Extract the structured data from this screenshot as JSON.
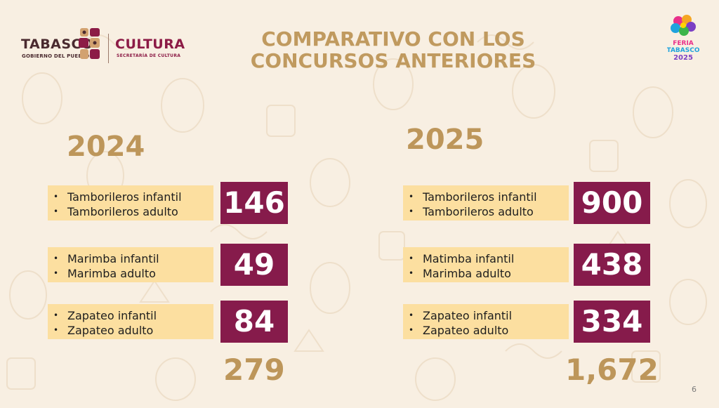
{
  "header": {
    "logo_left_text": "TABASCO",
    "logo_left_sub": "GOBIERNO DEL PUEBLO",
    "logo_right_text": "CULTURA",
    "logo_right_sub": "SECRETARÍA DE CULTURA",
    "title_line1": "COMPARATIVO CON LOS",
    "title_line2": "CONCURSOS ANTERIORES",
    "feria_logo_text": "FERIA TABASCO 2025"
  },
  "colors": {
    "background": "#f8efe2",
    "title": "#c09a5f",
    "label_bg": "#fcdfa0",
    "value_bg": "#861b4b",
    "accent_maroon": "#8c1b46"
  },
  "columns": [
    {
      "year": "2024",
      "rows": [
        {
          "items": [
            "Tamborileros infantil",
            "Tamborileros adulto"
          ],
          "value": "146"
        },
        {
          "items": [
            "Marimba infantil",
            "Marimba adulto"
          ],
          "value": "49"
        },
        {
          "items": [
            "Zapateo infantil",
            "Zapateo adulto"
          ],
          "value": "84"
        }
      ],
      "total": "279"
    },
    {
      "year": "2025",
      "rows": [
        {
          "items": [
            "Tamborileros infantil",
            "Tamborileros adulto"
          ],
          "value": "900"
        },
        {
          "items": [
            "Matimba  infantil",
            "Marimba adulto"
          ],
          "value": "438"
        },
        {
          "items": [
            "Zapateo infantil",
            "Zapateo adulto"
          ],
          "value": "334"
        }
      ],
      "total": "1,672"
    }
  ],
  "page_number": "6"
}
